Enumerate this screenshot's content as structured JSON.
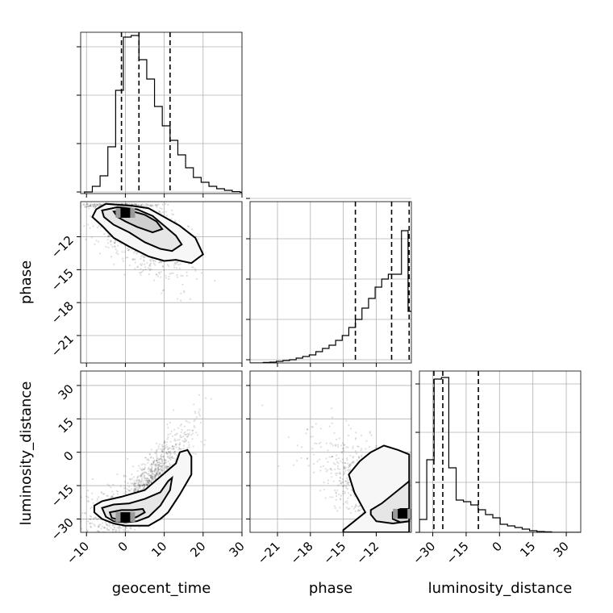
{
  "chart_data": {
    "type": "corner",
    "parameters": [
      "geocent_time",
      "phase",
      "luminosity_distance"
    ],
    "axis_labels": {
      "x": [
        "geocent_time",
        "phase",
        "luminosity_distance"
      ],
      "y": [
        "phase",
        "luminosity_distance"
      ]
    },
    "ranges": {
      "geocent_time": [
        -11.5,
        30
      ],
      "phase": [
        -23.5,
        -8.8
      ],
      "luminosity_distance": [
        -36,
        36.5
      ]
    },
    "ticks": {
      "geocent_time": [
        -10,
        0,
        10,
        20,
        30
      ],
      "phase": [
        -21,
        -18,
        -15,
        -12
      ],
      "luminosity_distance": [
        -30,
        -15,
        0,
        15,
        30
      ]
    },
    "tick_labels": {
      "geocent_time": [
        "−10",
        "0",
        "10",
        "20",
        "30"
      ],
      "phase": [
        "−21",
        "−18",
        "−15",
        "−12"
      ],
      "luminosity_distance": [
        "−30",
        "−15",
        "0",
        "15",
        "30"
      ]
    },
    "histograms": {
      "geocent_time": {
        "bin_edges": [
          -10.5,
          -8.5,
          -6.5,
          -4.5,
          -2.5,
          -0.5,
          1.5,
          3.5,
          5.5,
          7.5,
          9.5,
          11.5,
          13.5,
          15.5,
          17.5,
          19.5,
          21.5,
          23.5,
          25.5,
          27.5,
          29.5,
          31.5
        ],
        "counts": [
          1.0,
          4.5,
          11,
          29,
          64,
          97,
          98,
          83,
          71,
          54,
          42,
          33,
          24,
          16,
          10,
          7,
          4.5,
          3,
          2,
          1.2,
          0.8
        ],
        "quantile_lines": [
          -1.0,
          3.5,
          11.5
        ],
        "ylim": [
          0,
          100
        ],
        "yticks": [
          1,
          31,
          61,
          91
        ]
      },
      "phase": {
        "bin_edges": [
          -23.5,
          -22.9,
          -22.3,
          -21.7,
          -21.1,
          -20.5,
          -19.9,
          -19.3,
          -18.7,
          -18.1,
          -17.5,
          -16.9,
          -16.3,
          -15.7,
          -15.1,
          -14.5,
          -13.9,
          -13.3,
          -12.7,
          -12.1,
          -11.5,
          -10.9,
          -10.3,
          -9.7,
          -9.1,
          -8.8
        ],
        "counts": [
          0,
          0,
          0.3,
          0.5,
          1,
          1.5,
          2,
          3,
          4,
          5,
          7,
          9,
          11,
          14,
          17,
          22,
          27,
          34,
          40,
          47,
          52,
          55,
          55,
          82,
          32
        ],
        "quantile_lines": [
          -13.9,
          -10.6,
          -9.0
        ],
        "ylim": [
          0,
          100
        ],
        "yticks": [
          2,
          27,
          52,
          77,
          102
        ]
      },
      "luminosity_distance": {
        "bin_edges": [
          -36,
          -32.7,
          -29.4,
          -26.1,
          -22.8,
          -19.5,
          -16.2,
          -12.9,
          -9.6,
          -6.3,
          -3.0,
          0.3,
          3.6,
          6.9,
          10.2,
          13.5,
          16.8,
          20.1,
          23.4,
          26.7,
          30.0,
          33.3,
          36.5
        ],
        "counts": [
          8,
          45,
          95,
          96,
          40,
          20,
          19,
          17,
          14,
          11,
          9,
          5,
          4,
          3,
          2,
          1,
          0.5,
          0.3,
          0,
          0,
          0,
          0
        ],
        "quantile_lines": [
          -29.5,
          -25.5,
          -9.5
        ],
        "ylim": [
          0,
          100
        ],
        "yticks": [
          0,
          31,
          62,
          92
        ]
      }
    },
    "density_peaks": {
      "phase_vs_geocent_time": {
        "x": 0,
        "y": -9.9
      },
      "luminosity_distance_vs_geocent_time": {
        "x": 0,
        "y": -29.5
      },
      "luminosity_distance_vs_phase": {
        "x": -9.6,
        "y": -28
      }
    },
    "contours": {
      "phase_vs_geocent_time": [
        [
          [
            -7.5,
            -9.5
          ],
          [
            -5,
            -9.0
          ],
          [
            2,
            -9.2
          ],
          [
            6,
            -9.4
          ],
          [
            10,
            -10.2
          ],
          [
            14,
            -11.0
          ],
          [
            18,
            -12.1
          ],
          [
            20,
            -13.6
          ],
          [
            17,
            -14.4
          ],
          [
            13,
            -14.1
          ],
          [
            10,
            -14.2
          ],
          [
            6,
            -13.8
          ],
          [
            1,
            -12.9
          ],
          [
            -3,
            -12.1
          ],
          [
            -6,
            -11.0
          ],
          [
            -8.5,
            -10.2
          ],
          [
            -7.5,
            -9.5
          ]
        ],
        [
          [
            -6,
            -9.6
          ],
          [
            -2,
            -9.3
          ],
          [
            3,
            -9.5
          ],
          [
            7,
            -10.1
          ],
          [
            10,
            -11.0
          ],
          [
            13,
            -11.9
          ],
          [
            14.5,
            -12.7
          ],
          [
            12,
            -13.3
          ],
          [
            9,
            -13.1
          ],
          [
            5,
            -12.5
          ],
          [
            1,
            -11.6
          ],
          [
            -3,
            -10.9
          ],
          [
            -5.5,
            -10.2
          ],
          [
            -6,
            -9.6
          ]
        ],
        [
          [
            -3,
            -9.7
          ],
          [
            1,
            -9.6
          ],
          [
            5,
            -10.0
          ],
          [
            8,
            -10.6
          ],
          [
            9.5,
            -11.3
          ],
          [
            7,
            -11.6
          ],
          [
            3,
            -11.1
          ],
          [
            0,
            -10.6
          ],
          [
            -2,
            -10.2
          ],
          [
            -3,
            -9.7
          ]
        ]
      ],
      "luminosity_distance_vs_geocent_time": [
        [
          [
            -8,
            -24
          ],
          [
            -6,
            -22
          ],
          [
            -1,
            -20
          ],
          [
            5,
            -17
          ],
          [
            9,
            -11
          ],
          [
            13,
            -5
          ],
          [
            14,
            0
          ],
          [
            16,
            1
          ],
          [
            17,
            -2
          ],
          [
            17,
            -10
          ],
          [
            14,
            -19
          ],
          [
            11,
            -27
          ],
          [
            9,
            -30
          ],
          [
            6,
            -33
          ],
          [
            3,
            -33
          ],
          [
            0,
            -33
          ],
          [
            -3,
            -32
          ],
          [
            -6,
            -30
          ],
          [
            -8,
            -27
          ],
          [
            -8,
            -24
          ]
        ],
        [
          [
            -6,
            -25
          ],
          [
            -3,
            -23.5
          ],
          [
            1,
            -23
          ],
          [
            5,
            -21
          ],
          [
            9,
            -18
          ],
          [
            11,
            -13
          ],
          [
            12,
            -11.5
          ],
          [
            11.5,
            -17
          ],
          [
            9,
            -24
          ],
          [
            6,
            -29
          ],
          [
            3,
            -31
          ],
          [
            0,
            -31.5
          ],
          [
            -3,
            -31
          ],
          [
            -5,
            -29
          ],
          [
            -6,
            -25
          ]
        ],
        [
          [
            -4,
            -27
          ],
          [
            -1,
            -26
          ],
          [
            2,
            -26
          ],
          [
            4.5,
            -25.5
          ],
          [
            5,
            -27
          ],
          [
            3,
            -29
          ],
          [
            1,
            -30.5
          ],
          [
            -1.5,
            -30.5
          ],
          [
            -3.5,
            -29.5
          ],
          [
            -4,
            -27
          ]
        ]
      ],
      "luminosity_distance_vs_phase": [
        [
          [
            -15,
            -35
          ],
          [
            -13,
            -27
          ],
          [
            -14,
            -18
          ],
          [
            -14.5,
            -10
          ],
          [
            -13.5,
            -4
          ],
          [
            -12.5,
            0
          ],
          [
            -11.3,
            3
          ],
          [
            -10,
            1
          ],
          [
            -9,
            -1
          ],
          [
            -9,
            -36
          ],
          [
            -15,
            -36
          ],
          [
            -15,
            -35
          ]
        ],
        [
          [
            -12.5,
            -26
          ],
          [
            -11.5,
            -23
          ],
          [
            -10.5,
            -19
          ],
          [
            -9.5,
            -15
          ],
          [
            -9,
            -13
          ],
          [
            -9,
            -31
          ],
          [
            -10.5,
            -32
          ],
          [
            -12,
            -31
          ],
          [
            -12.5,
            -28
          ],
          [
            -12.5,
            -26
          ]
        ],
        [
          [
            -10.5,
            -27
          ],
          [
            -9.8,
            -25.5
          ],
          [
            -9,
            -25.5
          ],
          [
            -9,
            -31
          ],
          [
            -9.8,
            -31.5
          ],
          [
            -10.5,
            -30
          ],
          [
            -10.5,
            -27
          ]
        ]
      ]
    },
    "grid": true,
    "scatter_color": "#000000",
    "contour_color": "#000000"
  }
}
